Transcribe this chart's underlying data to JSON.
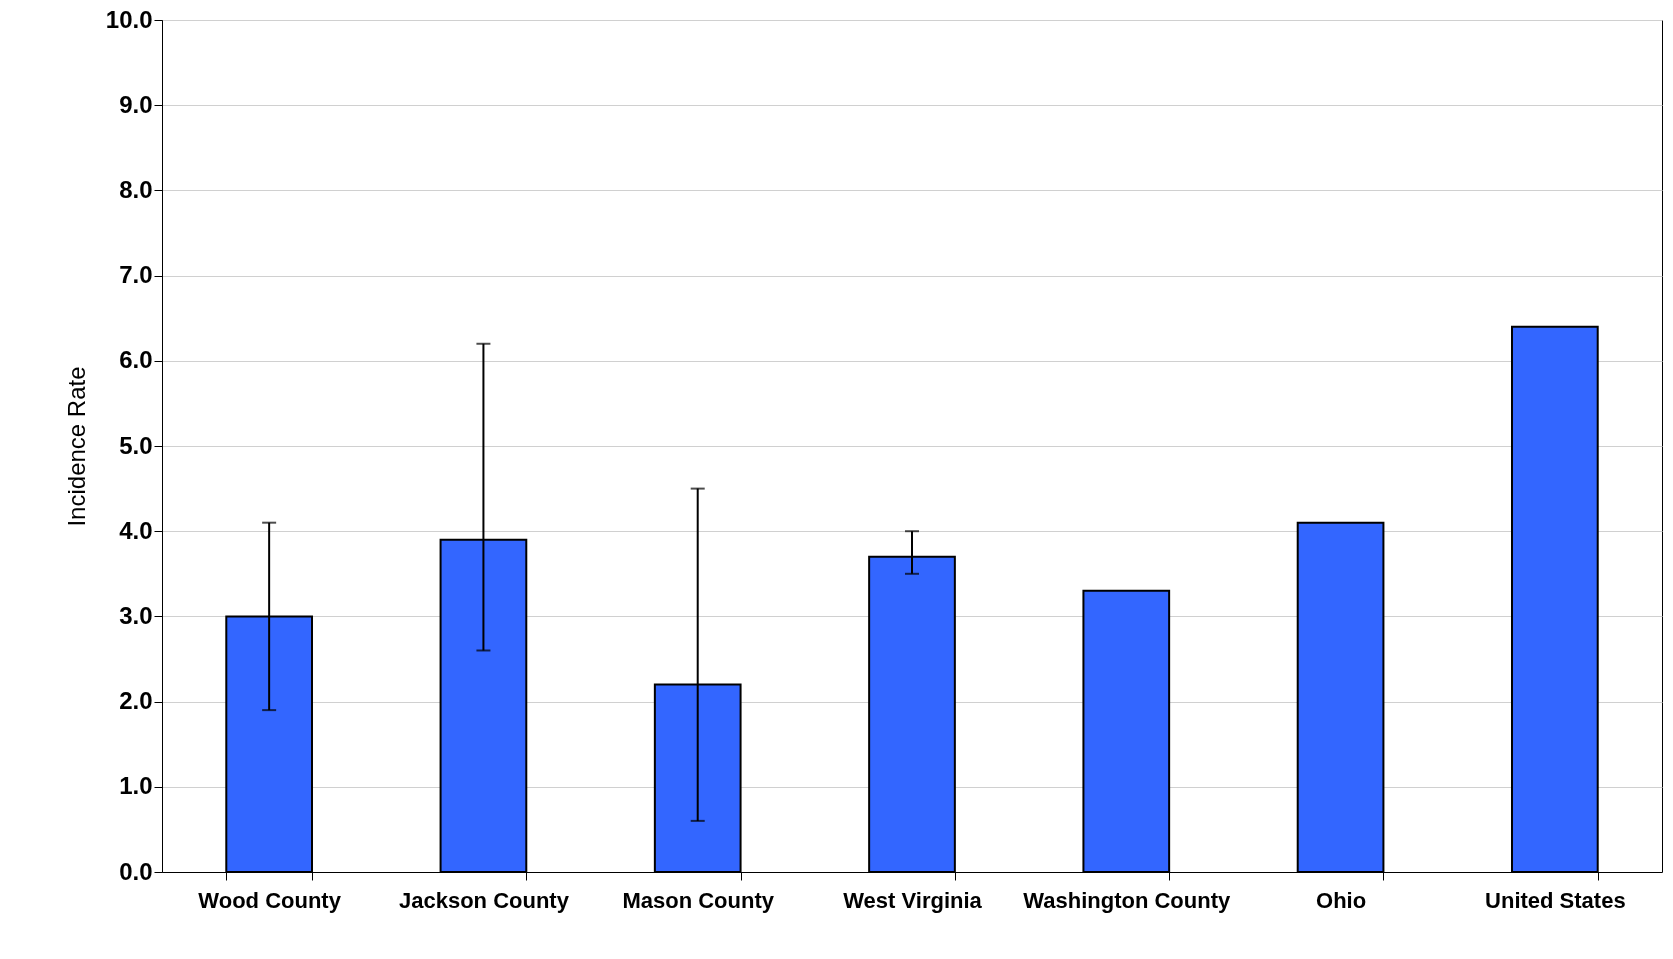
{
  "chart_data": {
    "type": "bar",
    "ylabel": "Incidence Rate",
    "categories": [
      "Wood County",
      "Jackson County",
      "Mason County",
      "West Virginia",
      "Washington County",
      "Ohio",
      "United States"
    ],
    "values": [
      3.0,
      3.9,
      2.2,
      3.7,
      3.3,
      4.1,
      6.4
    ],
    "errors": [
      [
        1.9,
        4.1
      ],
      [
        2.6,
        6.2
      ],
      [
        0.6,
        4.5
      ],
      [
        3.5,
        4.0
      ],
      null,
      null,
      null
    ],
    "color": "#3366ff",
    "ylim": [
      0,
      10
    ],
    "yticks": [
      {
        "value": 0,
        "label": "0.0"
      },
      {
        "value": 1,
        "label": "1.0"
      },
      {
        "value": 2,
        "label": "2.0"
      },
      {
        "value": 3,
        "label": "3.0"
      },
      {
        "value": 4,
        "label": "4.0"
      },
      {
        "value": 5,
        "label": "5.0"
      },
      {
        "value": 6,
        "label": "6.0"
      },
      {
        "value": 7,
        "label": "7.0"
      },
      {
        "value": 8,
        "label": "8.0"
      },
      {
        "value": 9,
        "label": "9.0"
      },
      {
        "value": 10,
        "label": "10.0"
      }
    ],
    "grid": "y"
  }
}
